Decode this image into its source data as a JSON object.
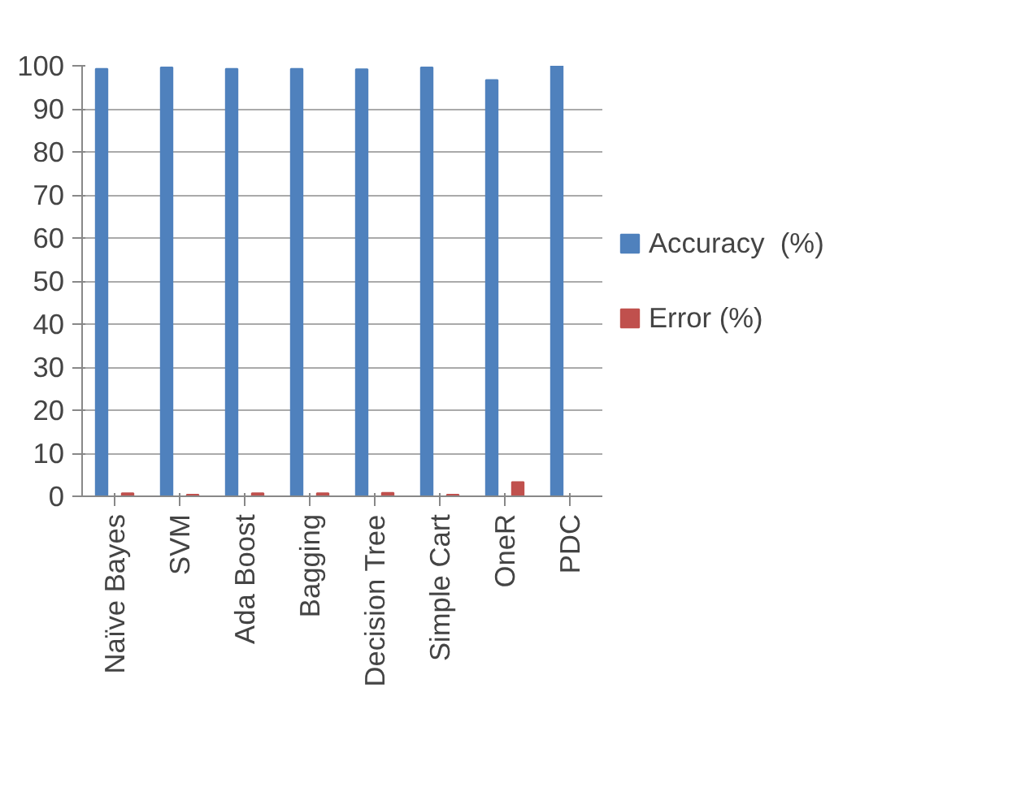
{
  "chart_data": {
    "type": "bar",
    "categories": [
      "Naïve Bayes",
      "SVM",
      "Ada Boost",
      "Bagging",
      "Decision Tree",
      "Simple Cart",
      "OneR",
      "PDC"
    ],
    "series": [
      {
        "name": "Accuracy  (%)",
        "color": "#4f81bd",
        "values": [
          99.3,
          99.6,
          99.3,
          99.3,
          99.2,
          99.6,
          96.7,
          100
        ]
      },
      {
        "name": "Error (%)",
        "color": "#c0504d",
        "values": [
          0.7,
          0.4,
          0.7,
          0.7,
          0.8,
          0.4,
          3.3,
          0
        ]
      }
    ],
    "ylim": [
      0,
      100
    ],
    "yticks": [
      0,
      10,
      20,
      30,
      40,
      50,
      60,
      70,
      80,
      90,
      100
    ],
    "grid": "y",
    "legend": "right"
  }
}
